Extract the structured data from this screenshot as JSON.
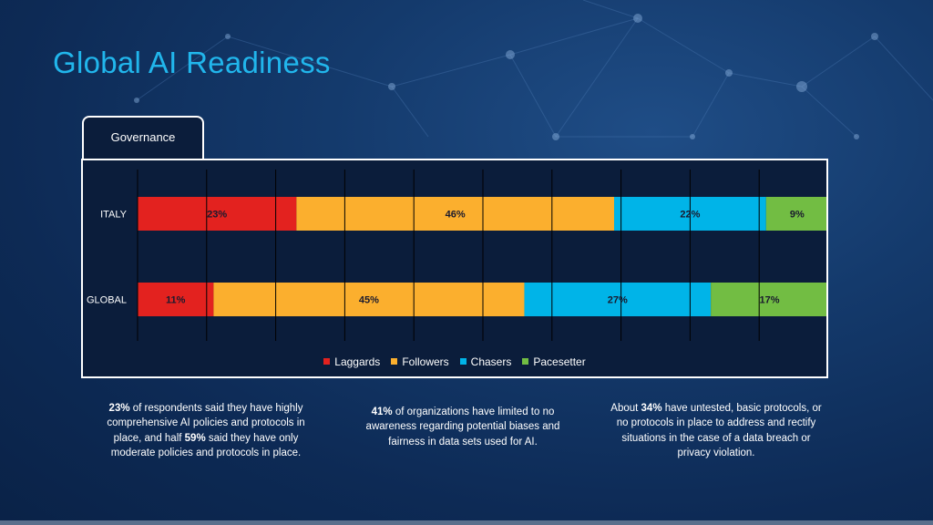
{
  "title": "Global AI Readiness",
  "tab": "Governance",
  "colors": {
    "Laggards": "#e3221f",
    "Followers": "#fbaf2e",
    "Chasers": "#00b4e8",
    "Pacesetter": "#72bd43"
  },
  "chart_data": {
    "type": "bar",
    "orientation": "horizontal",
    "stacked": true,
    "categories": [
      "ITALY",
      "GLOBAL"
    ],
    "series": [
      {
        "name": "Laggards",
        "values": [
          23,
          11
        ]
      },
      {
        "name": "Followers",
        "values": [
          46,
          45
        ]
      },
      {
        "name": "Chasers",
        "values": [
          22,
          27
        ]
      },
      {
        "name": "Pacesetter",
        "values": [
          9,
          17
        ]
      }
    ],
    "data_labels": [
      [
        "23%",
        "46%",
        "22%",
        "9%"
      ],
      [
        "11%",
        "45%",
        "27%",
        "17%"
      ]
    ],
    "xlim": [
      0,
      100
    ],
    "grid": true,
    "legend": "bottom"
  },
  "captions": [
    {
      "parts": [
        {
          "text": "23%",
          "bold": true
        },
        {
          "text": " of respondents said they have highly comprehensive AI policies and protocols in place, and half ",
          "bold": false
        },
        {
          "text": "59%",
          "bold": true
        },
        {
          "text": " said they have only moderate policies and protocols in place.",
          "bold": false
        }
      ]
    },
    {
      "parts": [
        {
          "text": "41%",
          "bold": true
        },
        {
          "text": " of organizations have limited to no awareness regarding potential biases and fairness in data sets used for AI.",
          "bold": false
        }
      ]
    },
    {
      "parts": [
        {
          "text": "About ",
          "bold": false
        },
        {
          "text": "34%",
          "bold": true
        },
        {
          "text": " have untested, basic protocols, or no protocols in place to address and rectify situations in the case of a data breach or privacy violation.",
          "bold": false
        }
      ]
    }
  ]
}
